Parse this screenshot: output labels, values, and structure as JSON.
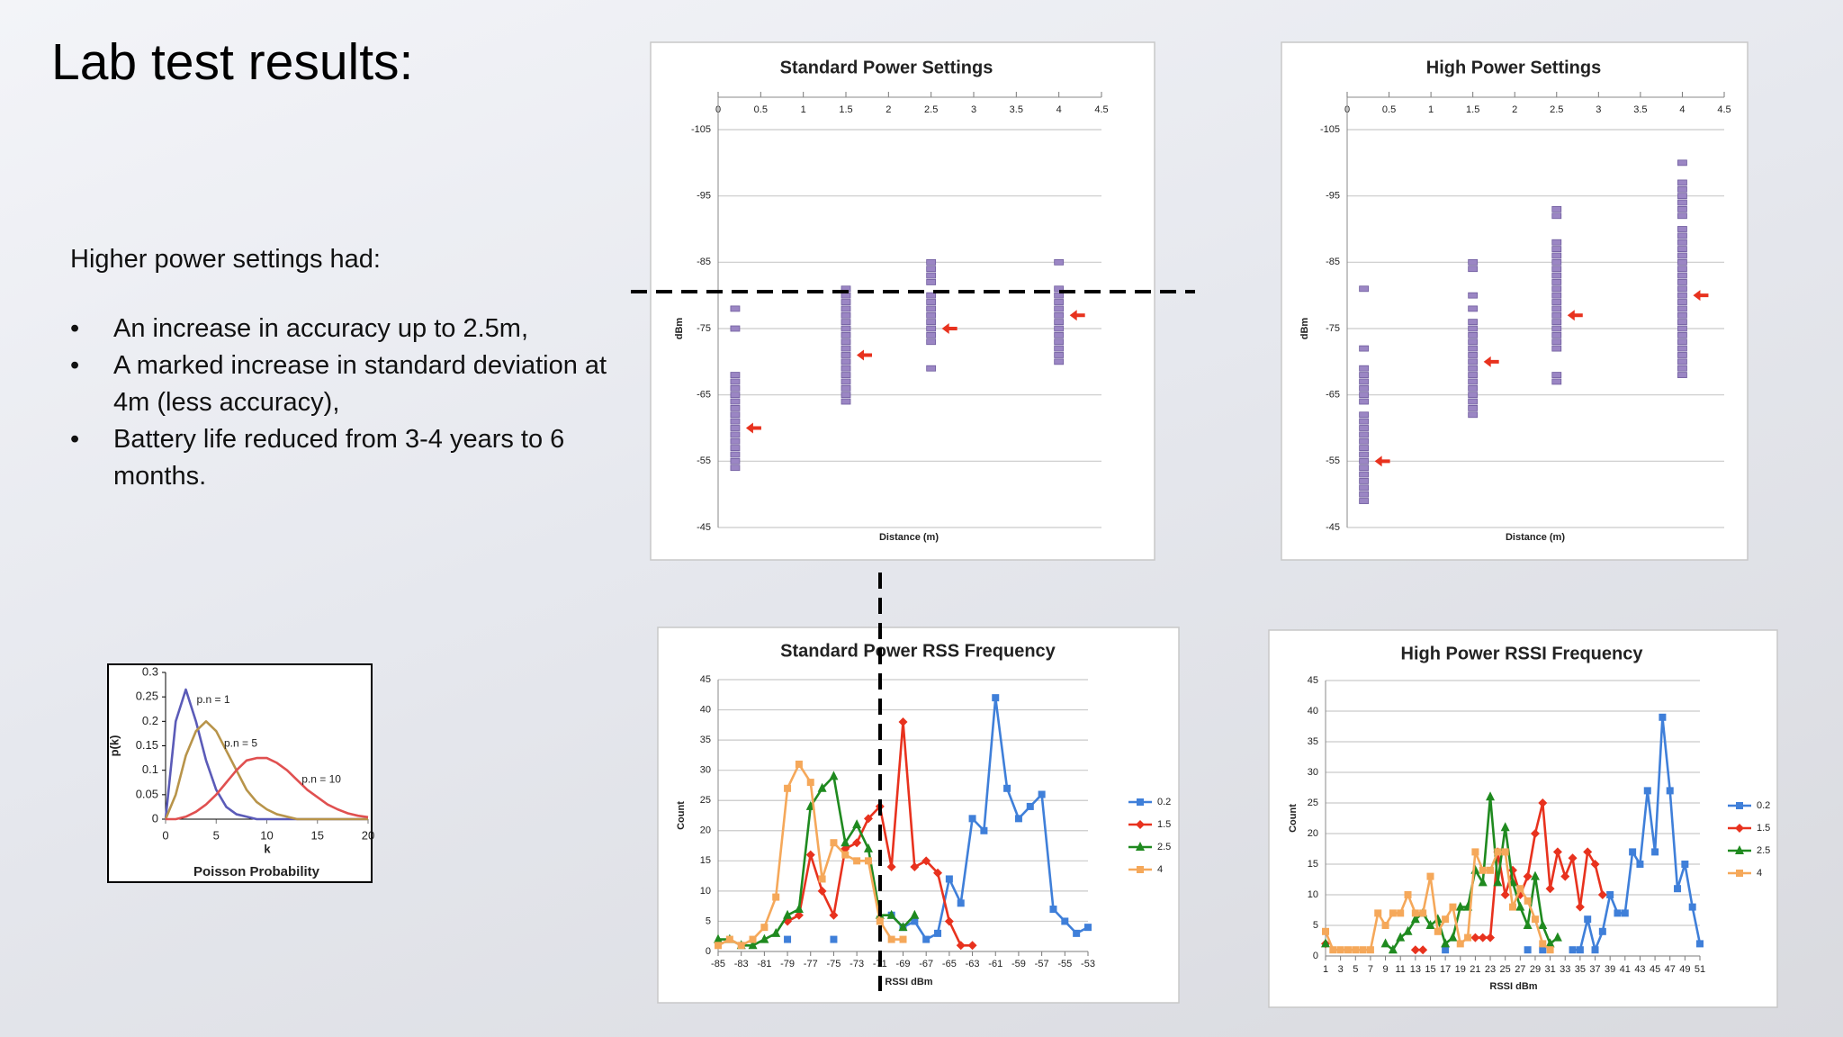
{
  "title": "Lab test results:",
  "intro": "Higher power settings had:",
  "bullets": [
    "An increase  in accuracy up to 2.5m,",
    "A marked increase in standard deviation at 4m (less accuracy),",
    "Battery life reduced from 3-4 years to 6 months."
  ],
  "chart_data": [
    {
      "type": "scatter",
      "title": "Standard Power Settings",
      "x_label": "Distance (m)",
      "y_label": "dBm",
      "xlim": [
        0,
        4.5
      ],
      "xticks": [
        0,
        0.5,
        1,
        1.5,
        2,
        2.5,
        3,
        3.5,
        4,
        4.5
      ],
      "ylim": [
        -45,
        -105
      ],
      "yticks": [
        -45,
        -55,
        -65,
        -75,
        -85,
        -95,
        -105
      ],
      "grid": true,
      "series": [
        {
          "color": "#9b86c4",
          "marker": "dash",
          "x": [
            0.2,
            0.2,
            0.2,
            0.2,
            0.2,
            0.2,
            0.2,
            0.2,
            0.2,
            0.2,
            0.2,
            0.2,
            0.2,
            0.2,
            0.2,
            0.2,
            0.2,
            1.5,
            1.5,
            1.5,
            1.5,
            1.5,
            1.5,
            1.5,
            1.5,
            1.5,
            1.5,
            1.5,
            1.5,
            1.5,
            1.5,
            1.5,
            1.5,
            1.5,
            1.5,
            2.5,
            2.5,
            2.5,
            2.5,
            2.5,
            2.5,
            2.5,
            2.5,
            2.5,
            2.5,
            2.5,
            2.5,
            2.5,
            4,
            4,
            4,
            4,
            4,
            4,
            4,
            4,
            4,
            4,
            4,
            4,
            4
          ],
          "values": [
            -54,
            -55,
            -56,
            -57,
            -58,
            -59,
            -60,
            -61,
            -62,
            -63,
            -64,
            -65,
            -66,
            -67,
            -68,
            -75,
            -78,
            -64,
            -65,
            -66,
            -67,
            -68,
            -69,
            -70,
            -71,
            -72,
            -73,
            -74,
            -75,
            -76,
            -77,
            -78,
            -79,
            -80,
            -81,
            -69,
            -73,
            -74,
            -75,
            -76,
            -77,
            -78,
            -79,
            -80,
            -82,
            -83,
            -84,
            -85,
            -70,
            -71,
            -72,
            -73,
            -74,
            -75,
            -76,
            -77,
            -78,
            -79,
            -80,
            -81,
            -85
          ]
        },
        {
          "color": "#e8321e",
          "marker": "arrow",
          "x": [
            0.2,
            1.5,
            2.5,
            4
          ],
          "values": [
            -60,
            -71,
            -75,
            -77
          ]
        }
      ]
    },
    {
      "type": "scatter",
      "title": "High Power Settings",
      "x_label": "Distance (m)",
      "y_label": "dBm",
      "xlim": [
        0,
        4.5
      ],
      "xticks": [
        0,
        0.5,
        1,
        1.5,
        2,
        2.5,
        3,
        3.5,
        4,
        4.5
      ],
      "ylim": [
        -45,
        -105
      ],
      "yticks": [
        -45,
        -55,
        -65,
        -75,
        -85,
        -95,
        -105
      ],
      "grid": true,
      "series": [
        {
          "color": "#9b86c4",
          "marker": "dash",
          "x": [
            0.2,
            0.2,
            0.2,
            0.2,
            0.2,
            0.2,
            0.2,
            0.2,
            0.2,
            0.2,
            0.2,
            0.2,
            0.2,
            0.2,
            0.2,
            0.2,
            0.2,
            0.2,
            0.2,
            0.2,
            0.2,
            0.2,
            1.5,
            1.5,
            1.5,
            1.5,
            1.5,
            1.5,
            1.5,
            1.5,
            1.5,
            1.5,
            1.5,
            1.5,
            1.5,
            1.5,
            1.5,
            1.5,
            1.5,
            1.5,
            1.5,
            2.5,
            2.5,
            2.5,
            2.5,
            2.5,
            2.5,
            2.5,
            2.5,
            2.5,
            2.5,
            2.5,
            2.5,
            2.5,
            2.5,
            2.5,
            2.5,
            2.5,
            2.5,
            2.5,
            2.5,
            2.5,
            4,
            4,
            4,
            4,
            4,
            4,
            4,
            4,
            4,
            4,
            4,
            4,
            4,
            4,
            4,
            4,
            4,
            4,
            4,
            4,
            4,
            4,
            4,
            4,
            4,
            4,
            4,
            4,
            4,
            4
          ],
          "values": [
            -49,
            -50,
            -51,
            -52,
            -53,
            -54,
            -55,
            -56,
            -57,
            -58,
            -59,
            -60,
            -61,
            -62,
            -64,
            -65,
            -66,
            -67,
            -68,
            -69,
            -72,
            -81,
            -62,
            -63,
            -64,
            -65,
            -66,
            -67,
            -68,
            -69,
            -70,
            -71,
            -72,
            -73,
            -74,
            -75,
            -76,
            -78,
            -80,
            -84,
            -85,
            -67,
            -68,
            -72,
            -73,
            -74,
            -75,
            -76,
            -77,
            -78,
            -79,
            -80,
            -81,
            -82,
            -83,
            -84,
            -85,
            -86,
            -87,
            -88,
            -92,
            -93,
            -68,
            -69,
            -70,
            -71,
            -72,
            -73,
            -74,
            -75,
            -76,
            -77,
            -78,
            -79,
            -80,
            -81,
            -82,
            -83,
            -84,
            -85,
            -86,
            -87,
            -88,
            -89,
            -90,
            -92,
            -93,
            -94,
            -95,
            -96,
            -97,
            -100
          ]
        },
        {
          "color": "#e8321e",
          "marker": "arrow",
          "x": [
            0.2,
            1.5,
            2.5,
            4
          ],
          "values": [
            -55,
            -70,
            -77,
            -80
          ]
        }
      ]
    },
    {
      "type": "line",
      "title": "Standard Power RSS Frequency",
      "x_label": "RSSI dBm",
      "y_label": "Count",
      "x": [
        -85,
        -84,
        -83,
        -82,
        -81,
        -80,
        -79,
        -78,
        -77,
        -76,
        -75,
        -74,
        -73,
        -72,
        -71,
        -70,
        -69,
        -68,
        -67,
        -66,
        -65,
        -64,
        -63,
        -62,
        -61,
        -60,
        -59,
        -58,
        -57,
        -56,
        -55,
        -54,
        -53
      ],
      "xlim": [
        -85,
        -53
      ],
      "xticks": [
        -85,
        -83,
        -81,
        -79,
        -77,
        -75,
        -73,
        -71,
        -69,
        -67,
        -65,
        -63,
        -61,
        -59,
        -57,
        -55,
        -53
      ],
      "ylim": [
        0,
        45
      ],
      "yticks": [
        0,
        5,
        10,
        15,
        20,
        25,
        30,
        35,
        40,
        45
      ],
      "grid": true,
      "legend": "right",
      "series": [
        {
          "name": "0.2",
          "color": "#3f7fd9",
          "marker": "square",
          "values": [
            null,
            null,
            null,
            null,
            null,
            null,
            2,
            null,
            null,
            null,
            2,
            null,
            null,
            null,
            null,
            6,
            4,
            5,
            2,
            3,
            12,
            8,
            22,
            20,
            42,
            27,
            22,
            24,
            26,
            7,
            5,
            3,
            4
          ]
        },
        {
          "name": "1.5",
          "color": "#e8321e",
          "marker": "diamond",
          "values": [
            null,
            null,
            null,
            null,
            null,
            null,
            5,
            6,
            16,
            10,
            6,
            17,
            18,
            22,
            24,
            14,
            38,
            14,
            15,
            13,
            5,
            1,
            1,
            null,
            null,
            null,
            null,
            null,
            null,
            null,
            null,
            null,
            null
          ]
        },
        {
          "name": "2.5",
          "color": "#1f8a1f",
          "marker": "triangle",
          "values": [
            2,
            2,
            1,
            1,
            2,
            3,
            6,
            7,
            24,
            27,
            29,
            18,
            21,
            17,
            6,
            6,
            4,
            6,
            null,
            null,
            null,
            null,
            null,
            null,
            null,
            null,
            null,
            null,
            null,
            null,
            null,
            null,
            null
          ]
        },
        {
          "name": "4",
          "color": "#f5a85a",
          "marker": "square",
          "values": [
            1,
            2,
            1,
            2,
            4,
            9,
            27,
            31,
            28,
            12,
            18,
            16,
            15,
            15,
            5,
            2,
            2,
            null,
            null,
            null,
            null,
            null,
            null,
            null,
            null,
            null,
            null,
            null,
            null,
            null,
            null,
            null,
            null
          ]
        }
      ]
    },
    {
      "type": "line",
      "title": "High Power RSSI Frequency",
      "x_label": "RSSI dBm",
      "y_label": "Count",
      "x": [
        1,
        2,
        3,
        4,
        5,
        6,
        7,
        8,
        9,
        10,
        11,
        12,
        13,
        14,
        15,
        16,
        17,
        18,
        19,
        20,
        21,
        22,
        23,
        24,
        25,
        26,
        27,
        28,
        29,
        30,
        31,
        32,
        33,
        34,
        35,
        36,
        37,
        38,
        39,
        40,
        41,
        42,
        43,
        44,
        45,
        46,
        47,
        48,
        49,
        50,
        51
      ],
      "xlim": [
        1,
        51
      ],
      "xticks": [
        1,
        3,
        5,
        7,
        9,
        11,
        13,
        15,
        17,
        19,
        21,
        23,
        25,
        27,
        29,
        31,
        33,
        35,
        37,
        39,
        41,
        43,
        45,
        47,
        49,
        51
      ],
      "ylim": [
        0,
        45
      ],
      "yticks": [
        0,
        5,
        10,
        15,
        20,
        25,
        30,
        35,
        40,
        45
      ],
      "grid": true,
      "legend": "right",
      "series": [
        {
          "name": "0.2",
          "color": "#3f7fd9",
          "marker": "square",
          "values": [
            null,
            null,
            null,
            null,
            null,
            null,
            null,
            null,
            null,
            null,
            null,
            null,
            null,
            null,
            null,
            null,
            1,
            null,
            null,
            null,
            null,
            null,
            null,
            null,
            null,
            null,
            null,
            1,
            null,
            1,
            null,
            null,
            null,
            1,
            1,
            6,
            1,
            4,
            10,
            7,
            7,
            17,
            15,
            27,
            17,
            39,
            27,
            11,
            15,
            8,
            2
          ]
        },
        {
          "name": "1.5",
          "color": "#e8321e",
          "marker": "diamond",
          "values": [
            2,
            null,
            null,
            null,
            null,
            null,
            null,
            null,
            null,
            null,
            null,
            null,
            1,
            1,
            null,
            null,
            null,
            null,
            null,
            null,
            3,
            3,
            3,
            17,
            10,
            14,
            10,
            13,
            20,
            25,
            11,
            17,
            13,
            16,
            8,
            17,
            15,
            10,
            null,
            null,
            null,
            null,
            null,
            null,
            null,
            null,
            null,
            null,
            null,
            null,
            null
          ]
        },
        {
          "name": "2.5",
          "color": "#1f8a1f",
          "marker": "triangle",
          "values": [
            2,
            null,
            null,
            null,
            null,
            null,
            null,
            null,
            2,
            1,
            3,
            4,
            6,
            7,
            5,
            6,
            2,
            3,
            8,
            8,
            14,
            12,
            26,
            12,
            21,
            12,
            8,
            5,
            13,
            5,
            2,
            3,
            null,
            null,
            null,
            null,
            null,
            null,
            null,
            null,
            null,
            null,
            null,
            null,
            null,
            null,
            null,
            null,
            null,
            null,
            null
          ]
        },
        {
          "name": "4",
          "color": "#f5a85a",
          "marker": "square",
          "values": [
            4,
            1,
            1,
            1,
            1,
            1,
            1,
            7,
            5,
            7,
            7,
            10,
            7,
            7,
            13,
            4,
            6,
            8,
            2,
            3,
            17,
            14,
            14,
            17,
            17,
            8,
            11,
            9,
            6,
            2,
            1,
            null,
            null,
            null,
            null,
            null,
            null,
            null,
            null,
            null,
            null,
            null,
            null,
            null,
            null,
            null,
            null,
            null,
            null,
            null,
            null
          ]
        }
      ]
    },
    {
      "type": "line",
      "title": "Poisson Probability",
      "x_label": "k",
      "y_label": "p(k)",
      "x": [
        0,
        1,
        2,
        3,
        4,
        5,
        6,
        7,
        8,
        9,
        10,
        11,
        12,
        13,
        14,
        15,
        16,
        17,
        18,
        19,
        20
      ],
      "xlim": [
        0,
        20
      ],
      "xticks": [
        0,
        5,
        10,
        15,
        20
      ],
      "ylim": [
        0,
        0.3
      ],
      "yticks": [
        0,
        0.05,
        0.1,
        0.15,
        0.2,
        0.25,
        0.3
      ],
      "grid": false,
      "series": [
        {
          "name": "p.n = 1",
          "color": "#5b5bb8",
          "values": [
            0,
            0.2,
            0.265,
            0.2,
            0.12,
            0.06,
            0.025,
            0.01,
            0.005,
            0,
            0,
            0,
            0,
            0,
            0,
            0,
            0,
            0,
            0,
            0,
            0
          ]
        },
        {
          "name": "p.n = 5",
          "color": "#b8944a",
          "values": [
            0,
            0.05,
            0.13,
            0.18,
            0.2,
            0.18,
            0.14,
            0.1,
            0.06,
            0.035,
            0.02,
            0.01,
            0.005,
            0,
            0,
            0,
            0,
            0,
            0,
            0,
            0
          ]
        },
        {
          "name": "p.n = 10",
          "color": "#e05050",
          "values": [
            0,
            0,
            0.005,
            0.015,
            0.03,
            0.05,
            0.075,
            0.1,
            0.12,
            0.125,
            0.125,
            0.115,
            0.1,
            0.08,
            0.06,
            0.045,
            0.03,
            0.02,
            0.012,
            0.007,
            0.004
          ]
        }
      ]
    }
  ]
}
